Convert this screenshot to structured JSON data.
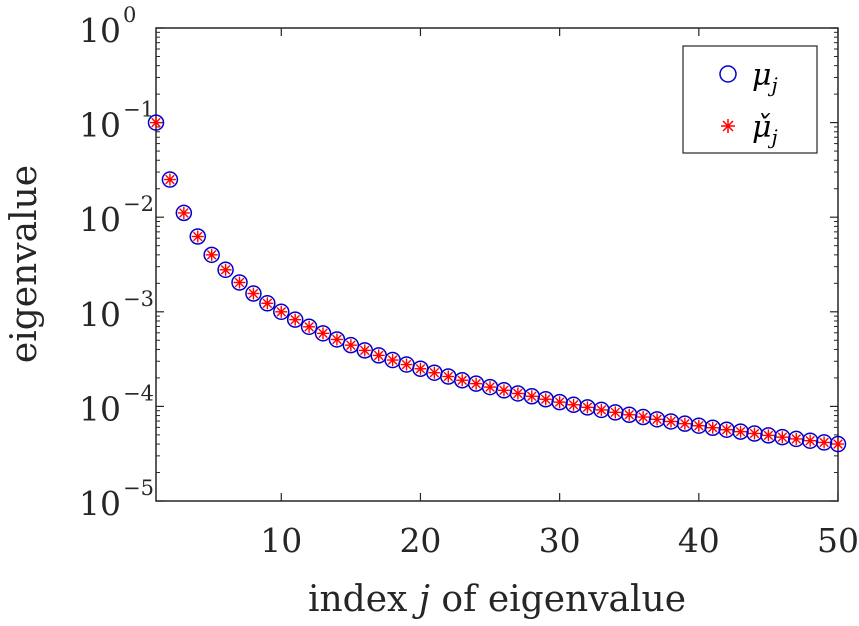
{
  "chart_data": {
    "type": "scatter",
    "title": "",
    "xlabel": "index j of eigenvalue",
    "xlabel_parts": [
      "index ",
      "j",
      " of eigenvalue"
    ],
    "ylabel": "eigenvalue",
    "xlim": [
      1,
      50
    ],
    "ylim": [
      1e-05,
      1
    ],
    "yscale": "log",
    "x_ticks": [
      10,
      20,
      30,
      40,
      50
    ],
    "x_tick_labels": [
      "10",
      "20",
      "30",
      "40",
      "50"
    ],
    "y_ticks": [
      1e-05,
      0.0001,
      0.001,
      0.01,
      0.1,
      1
    ],
    "y_tick_labels": [
      {
        "base": "10",
        "exp": "−5"
      },
      {
        "base": "10",
        "exp": "−4"
      },
      {
        "base": "10",
        "exp": "−3"
      },
      {
        "base": "10",
        "exp": "−2"
      },
      {
        "base": "10",
        "exp": "−1"
      },
      {
        "base": "10",
        "exp": "0"
      }
    ],
    "legend_position": "top-right",
    "x": [
      1,
      2,
      3,
      4,
      5,
      6,
      7,
      8,
      9,
      10,
      11,
      12,
      13,
      14,
      15,
      16,
      17,
      18,
      19,
      20,
      21,
      22,
      23,
      24,
      25,
      26,
      27,
      28,
      29,
      30,
      31,
      32,
      33,
      34,
      35,
      36,
      37,
      38,
      39,
      40,
      41,
      42,
      43,
      44,
      45,
      46,
      47,
      48,
      49,
      50
    ],
    "series": [
      {
        "name": "μ_j",
        "legend_main": "μ",
        "legend_sub": "j",
        "marker": "circle",
        "color": "#0000cc",
        "values": [
          0.1,
          0.025,
          0.0111,
          0.00625,
          0.004,
          0.00278,
          0.00204,
          0.00156,
          0.00123,
          0.001,
          0.000826,
          0.000694,
          0.000592,
          0.00051,
          0.000444,
          0.000391,
          0.000346,
          0.000309,
          0.000277,
          0.00025,
          0.000227,
          0.000207,
          0.000189,
          0.000174,
          0.00016,
          0.000148,
          0.000137,
          0.000128,
          0.000119,
          0.000111,
          0.000104,
          9.77e-05,
          9.18e-05,
          8.65e-05,
          8.16e-05,
          7.72e-05,
          7.3e-05,
          6.93e-05,
          6.57e-05,
          6.25e-05,
          5.95e-05,
          5.67e-05,
          5.41e-05,
          5.17e-05,
          4.94e-05,
          4.73e-05,
          4.53e-05,
          4.34e-05,
          4.16e-05,
          4e-05
        ]
      },
      {
        "name": "μ̌_j",
        "legend_main": "μ̌",
        "legend_sub": "j",
        "marker": "asterisk",
        "color": "#ff0000",
        "values": [
          0.1,
          0.025,
          0.0111,
          0.00625,
          0.004,
          0.00278,
          0.00204,
          0.00156,
          0.00123,
          0.001,
          0.000826,
          0.000694,
          0.000592,
          0.00051,
          0.000444,
          0.000391,
          0.000346,
          0.000309,
          0.000277,
          0.00025,
          0.000227,
          0.000207,
          0.000189,
          0.000174,
          0.00016,
          0.000148,
          0.000137,
          0.000128,
          0.000119,
          0.000111,
          0.000104,
          9.77e-05,
          9.18e-05,
          8.65e-05,
          8.16e-05,
          7.72e-05,
          7.3e-05,
          6.93e-05,
          6.57e-05,
          6.25e-05,
          5.95e-05,
          5.67e-05,
          5.41e-05,
          5.17e-05,
          4.94e-05,
          4.73e-05,
          4.53e-05,
          4.34e-05,
          4.16e-05,
          4e-05
        ]
      }
    ]
  }
}
